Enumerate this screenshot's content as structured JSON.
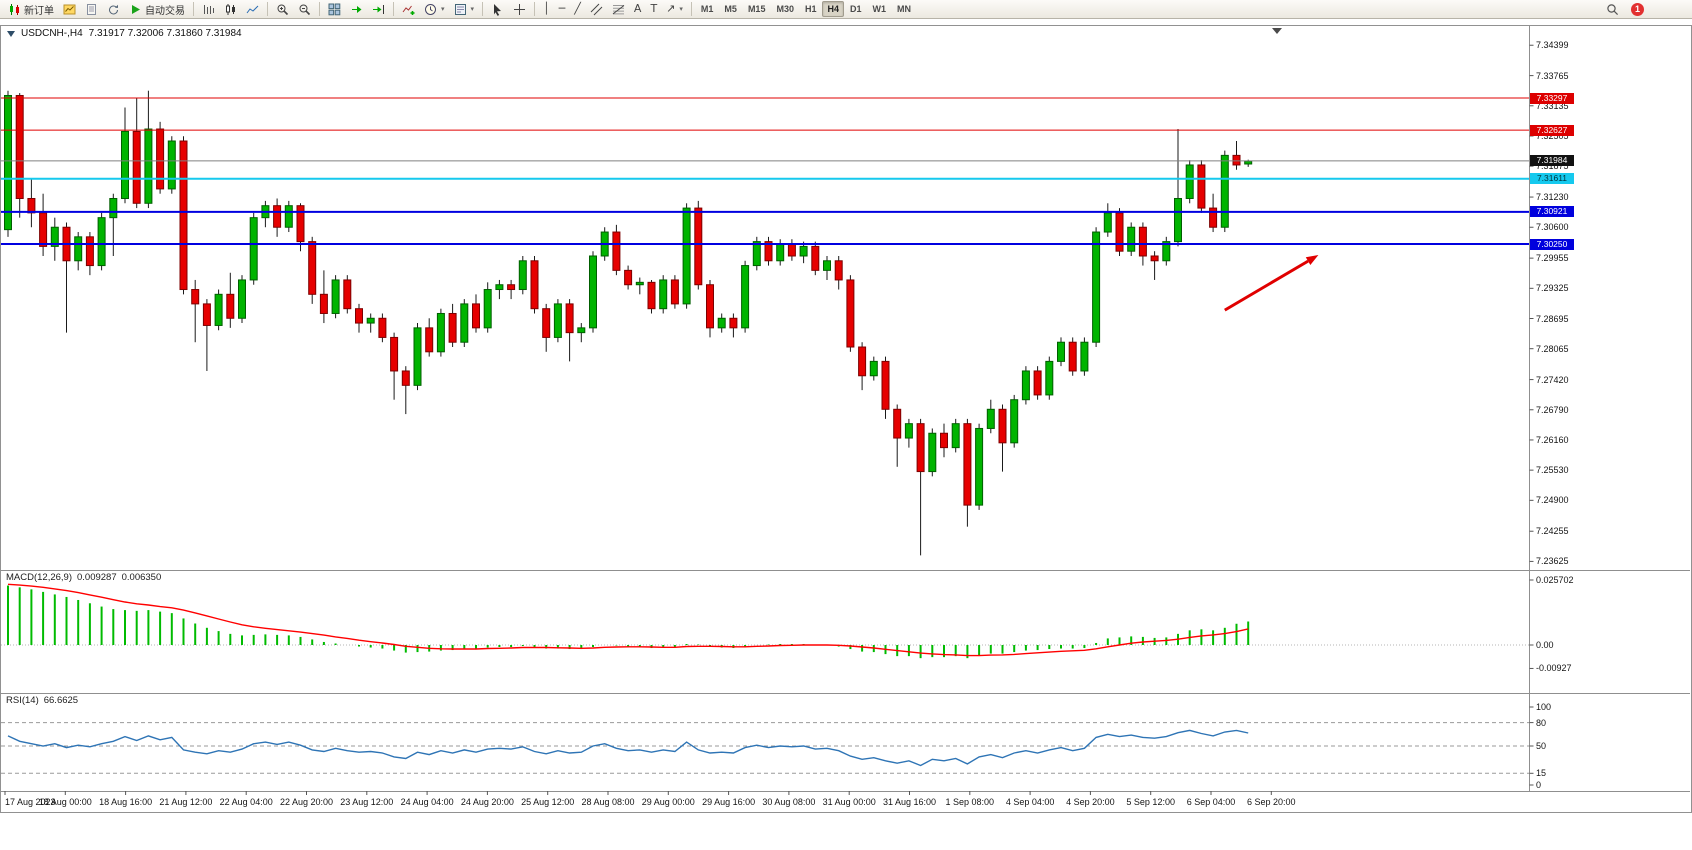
{
  "toolbar": {
    "buttons": [
      {
        "name": "new-order",
        "icon": "candles",
        "label": "新订单"
      },
      {
        "name": "new-chart",
        "icon": "chart-yellow"
      },
      {
        "name": "profiles",
        "icon": "document"
      },
      {
        "name": "refresh",
        "icon": "refresh"
      },
      {
        "name": "auto-trading",
        "icon": "play",
        "label": "自动交易"
      },
      {
        "sep": true
      },
      {
        "name": "bar-chart",
        "icon": "bars"
      },
      {
        "name": "candlestick-chart",
        "icon": "candle"
      },
      {
        "name": "line-chart",
        "icon": "line"
      },
      {
        "sep": true
      },
      {
        "name": "zoom-in",
        "icon": "zoom-in"
      },
      {
        "name": "zoom-out",
        "icon": "zoom-out"
      },
      {
        "sep": true
      },
      {
        "name": "tile-windows",
        "icon": "grid"
      },
      {
        "name": "auto-scroll",
        "icon": "scroll"
      },
      {
        "name": "chart-shift",
        "icon": "shift"
      },
      {
        "sep": true
      },
      {
        "name": "indicators",
        "icon": "indicator"
      },
      {
        "name": "periods",
        "icon": "clock",
        "dropdown": true
      },
      {
        "name": "templates",
        "icon": "template",
        "dropdown": true
      },
      {
        "sep": true
      },
      {
        "name": "cursor",
        "icon": "cursor"
      },
      {
        "name": "crosshair",
        "icon": "crosshair"
      },
      {
        "sep": true
      },
      {
        "name": "vertical-line",
        "glyph": "│"
      },
      {
        "name": "horizontal-line",
        "glyph": "─"
      },
      {
        "name": "trendline",
        "glyph": "╱"
      },
      {
        "name": "equidistant-channel",
        "icon": "channel"
      },
      {
        "name": "fibonacci",
        "icon": "fibonacci"
      },
      {
        "name": "text",
        "glyph": "A"
      },
      {
        "name": "text-label",
        "glyph": "T"
      },
      {
        "name": "arrows",
        "glyph": "↗",
        "dropdown": true
      },
      {
        "sep": true
      }
    ],
    "timeframes": [
      "M1",
      "M5",
      "M15",
      "M30",
      "H1",
      "H4",
      "D1",
      "W1",
      "MN"
    ],
    "active_timeframe": "H4",
    "notification_count": "1"
  },
  "chart": {
    "symbol_period": "USDCNH-,H4",
    "ohlc": "7.31917 7.32006 7.31860 7.31984"
  },
  "price_axis": {
    "ticks": [
      "7.34399",
      "7.33765",
      "7.33135",
      "7.32505",
      "7.31875",
      "7.31230",
      "7.30600",
      "7.29955",
      "7.29325",
      "7.28695",
      "7.28065",
      "7.27420",
      "7.26790",
      "7.26160",
      "7.25530",
      "7.24900",
      "7.24255",
      "7.23625"
    ],
    "labels": [
      {
        "text": "7.33297",
        "bg": "#dd0000",
        "fg": "#ffffff"
      },
      {
        "text": "7.32627",
        "bg": "#dd0000",
        "fg": "#ffffff"
      },
      {
        "text": "7.31984",
        "bg": "#111111",
        "fg": "#ffffff"
      },
      {
        "text": "7.31611",
        "bg": "#15c9ee",
        "fg": "#00333d"
      },
      {
        "text": "7.30921",
        "bg": "#0000dd",
        "fg": "#ffffff"
      },
      {
        "text": "7.30250",
        "bg": "#0000dd",
        "fg": "#ffffff"
      }
    ]
  },
  "macd_panel": {
    "label": "MACD(12,26,9)",
    "value_main": "0.009287",
    "value_signal": "0.006350",
    "axis": [
      "0.025702",
      "0.00",
      "-0.00927"
    ]
  },
  "rsi_panel": {
    "label": "RSI(14)",
    "value": "66.6625",
    "axis": [
      "100",
      "80",
      "50",
      "15",
      "0"
    ]
  },
  "time_axis": {
    "labels": [
      "17 Aug 2023",
      "18 Aug 00:00",
      "18 Aug 16:00",
      "21 Aug 12:00",
      "22 Aug 04:00",
      "22 Aug 20:00",
      "23 Aug 12:00",
      "24 Aug 04:00",
      "24 Aug 20:00",
      "25 Aug 12:00",
      "28 Aug 08:00",
      "29 Aug 00:00",
      "29 Aug 16:00",
      "30 Aug 08:00",
      "31 Aug 00:00",
      "31 Aug 16:00",
      "1 Sep 08:00",
      "4 Sep 04:00",
      "4 Sep 20:00",
      "5 Sep 12:00",
      "6 Sep 04:00",
      "6 Sep 20:00"
    ]
  },
  "chart_data": {
    "type": "candlestick",
    "symbol": "USDCNH-",
    "timeframe": "H4",
    "title": "USDCNH-,H4 7.31917 7.32006 7.31860 7.31984",
    "ohlc_current": {
      "open": 7.31917,
      "high": 7.32006,
      "low": 7.3186,
      "close": 7.31984
    },
    "ylim": [
      7.2355,
      7.3455
    ],
    "open": [
      7.3055,
      7.3335,
      7.312,
      7.309,
      7.302,
      7.306,
      7.299,
      7.304,
      7.298,
      7.308,
      7.312,
      7.326,
      7.311,
      7.3265,
      7.314,
      7.324,
      7.293,
      7.29,
      7.2855,
      7.292,
      7.287,
      7.295,
      7.308,
      7.3105,
      7.306,
      7.3105,
      7.303,
      7.292,
      7.288,
      7.295,
      7.289,
      7.286,
      7.287,
      7.283,
      7.276,
      7.273,
      7.285,
      7.28,
      7.288,
      7.282,
      7.29,
      7.285,
      7.293,
      7.294,
      7.293,
      7.299,
      7.289,
      7.283,
      7.29,
      7.284,
      7.285,
      7.3,
      7.305,
      7.297,
      7.294,
      7.2945,
      7.289,
      7.295,
      7.29,
      7.31,
      7.294,
      7.285,
      7.287,
      7.285,
      7.298,
      7.303,
      7.299,
      7.3025,
      7.3,
      7.302,
      7.297,
      7.299,
      7.295,
      7.281,
      7.275,
      7.278,
      7.268,
      7.262,
      7.265,
      7.255,
      7.263,
      7.26,
      7.265,
      7.248,
      7.264,
      7.268,
      7.261,
      7.27,
      7.276,
      7.271,
      7.278,
      7.282,
      7.276,
      7.282,
      7.305,
      7.309,
      7.301,
      7.306,
      7.3,
      7.299,
      7.303,
      7.312,
      7.319,
      7.31,
      7.306,
      7.321,
      7.3192
    ],
    "high": [
      7.3345,
      7.334,
      7.316,
      7.313,
      7.308,
      7.307,
      7.305,
      7.305,
      7.309,
      7.313,
      7.331,
      7.333,
      7.3345,
      7.328,
      7.325,
      7.325,
      7.295,
      7.291,
      7.293,
      7.2965,
      7.296,
      7.309,
      7.3115,
      7.312,
      7.3115,
      7.311,
      7.304,
      7.297,
      7.296,
      7.296,
      7.29,
      7.288,
      7.288,
      7.284,
      7.277,
      7.286,
      7.287,
      7.289,
      7.29,
      7.291,
      7.292,
      7.2945,
      7.295,
      7.295,
      7.3,
      7.3,
      7.29,
      7.291,
      7.291,
      7.286,
      7.301,
      7.306,
      7.3065,
      7.298,
      7.2955,
      7.295,
      7.296,
      7.296,
      7.311,
      7.3115,
      7.295,
      7.288,
      7.288,
      7.299,
      7.304,
      7.304,
      7.3035,
      7.3035,
      7.303,
      7.303,
      7.3,
      7.3,
      7.296,
      7.282,
      7.279,
      7.279,
      7.269,
      7.266,
      7.266,
      7.264,
      7.265,
      7.266,
      7.266,
      7.265,
      7.27,
      7.269,
      7.271,
      7.277,
      7.277,
      7.279,
      7.283,
      7.283,
      7.283,
      7.306,
      7.311,
      7.31,
      7.307,
      7.307,
      7.301,
      7.304,
      7.3265,
      7.32,
      7.32,
      7.313,
      7.322,
      7.324,
      7.3201
    ],
    "low": [
      7.304,
      7.308,
      7.306,
      7.3,
      7.299,
      7.284,
      7.297,
      7.296,
      7.297,
      7.3,
      7.311,
      7.31,
      7.31,
      7.313,
      7.313,
      7.292,
      7.282,
      7.276,
      7.2845,
      7.285,
      7.286,
      7.294,
      7.306,
      7.304,
      7.305,
      7.301,
      7.29,
      7.286,
      7.287,
      7.288,
      7.284,
      7.284,
      7.282,
      7.27,
      7.267,
      7.272,
      7.279,
      7.279,
      7.281,
      7.281,
      7.284,
      7.284,
      7.291,
      7.291,
      7.292,
      7.288,
      7.28,
      7.282,
      7.278,
      7.282,
      7.284,
      7.299,
      7.296,
      7.293,
      7.292,
      7.288,
      7.288,
      7.289,
      7.289,
      7.293,
      7.283,
      7.284,
      7.283,
      7.284,
      7.297,
      7.298,
      7.298,
      7.299,
      7.2985,
      7.296,
      7.295,
      7.293,
      7.28,
      7.272,
      7.274,
      7.266,
      7.256,
      7.26,
      7.2375,
      7.254,
      7.258,
      7.259,
      7.2435,
      7.247,
      7.263,
      7.255,
      7.26,
      7.269,
      7.27,
      7.27,
      7.277,
      7.275,
      7.275,
      7.281,
      7.304,
      7.3,
      7.3,
      7.298,
      7.295,
      7.298,
      7.302,
      7.311,
      7.309,
      7.305,
      7.305,
      7.318,
      7.3186
    ],
    "close": [
      7.3335,
      7.312,
      7.309,
      7.302,
      7.306,
      7.299,
      7.304,
      7.298,
      7.308,
      7.312,
      7.326,
      7.311,
      7.3265,
      7.314,
      7.324,
      7.293,
      7.29,
      7.2855,
      7.292,
      7.287,
      7.295,
      7.308,
      7.3105,
      7.306,
      7.3105,
      7.303,
      7.292,
      7.288,
      7.295,
      7.289,
      7.286,
      7.287,
      7.283,
      7.276,
      7.273,
      7.285,
      7.28,
      7.288,
      7.282,
      7.29,
      7.285,
      7.293,
      7.294,
      7.293,
      7.299,
      7.289,
      7.283,
      7.29,
      7.284,
      7.285,
      7.3,
      7.305,
      7.297,
      7.294,
      7.2945,
      7.289,
      7.295,
      7.29,
      7.31,
      7.294,
      7.285,
      7.287,
      7.285,
      7.298,
      7.303,
      7.299,
      7.3025,
      7.3,
      7.302,
      7.297,
      7.299,
      7.295,
      7.281,
      7.275,
      7.278,
      7.268,
      7.262,
      7.265,
      7.255,
      7.263,
      7.26,
      7.265,
      7.248,
      7.264,
      7.268,
      7.261,
      7.27,
      7.276,
      7.271,
      7.278,
      7.282,
      7.276,
      7.282,
      7.305,
      7.309,
      7.301,
      7.306,
      7.3,
      7.299,
      7.303,
      7.312,
      7.319,
      7.31,
      7.306,
      7.321,
      7.319,
      7.3198
    ],
    "levels": [
      {
        "price": 7.33297,
        "color": "#e00000",
        "width": 1
      },
      {
        "price": 7.32627,
        "color": "#e00000",
        "width": 1
      },
      {
        "price": 7.31984,
        "color": "#808080",
        "width": 1
      },
      {
        "price": 7.31611,
        "color": "#15c9ee",
        "width": 2
      },
      {
        "price": 7.30921,
        "color": "#0000e0",
        "width": 2
      },
      {
        "price": 7.3025,
        "color": "#0000e0",
        "width": 2
      }
    ],
    "macd": {
      "ylim": [
        -0.00927,
        0.025702
      ],
      "histogram": [
        0.0235,
        0.0228,
        0.022,
        0.021,
        0.02,
        0.019,
        0.0178,
        0.0165,
        0.0152,
        0.0142,
        0.0138,
        0.0135,
        0.0138,
        0.0132,
        0.0126,
        0.0105,
        0.0085,
        0.0068,
        0.0055,
        0.0044,
        0.0038,
        0.004,
        0.0042,
        0.004,
        0.0038,
        0.0032,
        0.0022,
        0.0012,
        0.0006,
        0.0,
        -0.0006,
        -0.001,
        -0.0014,
        -0.0022,
        -0.003,
        -0.0028,
        -0.0026,
        -0.0022,
        -0.002,
        -0.0016,
        -0.0014,
        -0.001,
        -0.0008,
        -0.0008,
        -0.0004,
        -0.0008,
        -0.0014,
        -0.0014,
        -0.0016,
        -0.0016,
        -0.0008,
        0.0,
        -0.0002,
        -0.0006,
        -0.0008,
        -0.0012,
        -0.001,
        -0.001,
        0.0004,
        0.0002,
        -0.0006,
        -0.001,
        -0.0012,
        -0.0006,
        0.0,
        0.0002,
        0.0004,
        0.0004,
        0.0004,
        0.0,
        -0.0002,
        -0.0006,
        -0.0016,
        -0.0026,
        -0.0028,
        -0.0036,
        -0.0044,
        -0.0044,
        -0.0052,
        -0.0048,
        -0.0048,
        -0.0044,
        -0.0052,
        -0.0042,
        -0.0034,
        -0.0034,
        -0.0028,
        -0.0022,
        -0.002,
        -0.0016,
        -0.0014,
        -0.0014,
        -0.0012,
        0.0008,
        0.0026,
        0.003,
        0.0034,
        0.0032,
        0.0028,
        0.003,
        0.0044,
        0.0058,
        0.0062,
        0.0058,
        0.0068,
        0.0084,
        0.009287
      ],
      "signal": [
        0.024,
        0.0237,
        0.0233,
        0.0228,
        0.0222,
        0.0215,
        0.0207,
        0.0198,
        0.0189,
        0.0179,
        0.017,
        0.0163,
        0.0158,
        0.0152,
        0.0147,
        0.0138,
        0.0127,
        0.0115,
        0.0103,
        0.0091,
        0.008,
        0.0072,
        0.0066,
        0.0061,
        0.0056,
        0.0051,
        0.0045,
        0.0039,
        0.0032,
        0.0026,
        0.0019,
        0.0013,
        0.0008,
        0.0002,
        -0.0005,
        -0.0009,
        -0.0013,
        -0.0015,
        -0.0016,
        -0.0016,
        -0.0016,
        -0.0014,
        -0.0013,
        -0.0012,
        -0.001,
        -0.001,
        -0.001,
        -0.0011,
        -0.0012,
        -0.0013,
        -0.0012,
        -0.0009,
        -0.0008,
        -0.0007,
        -0.0007,
        -0.0008,
        -0.0009,
        -0.0009,
        -0.0006,
        -0.0005,
        -0.0005,
        -0.0006,
        -0.0007,
        -0.0007,
        -0.0005,
        -0.0004,
        -0.0002,
        -0.0001,
        0.0,
        0.0,
        0.0,
        -0.0001,
        -0.0004,
        -0.0008,
        -0.0012,
        -0.0017,
        -0.0022,
        -0.0027,
        -0.0032,
        -0.0035,
        -0.0038,
        -0.0039,
        -0.0042,
        -0.0042,
        -0.004,
        -0.0039,
        -0.0037,
        -0.0034,
        -0.0031,
        -0.0028,
        -0.0025,
        -0.0023,
        -0.0021,
        -0.0015,
        -0.0007,
        0.0,
        0.0007,
        0.0012,
        0.0015,
        0.0018,
        0.0023,
        0.003,
        0.0036,
        0.004,
        0.0045,
        0.0053,
        0.00635
      ]
    },
    "rsi": {
      "ylim": [
        0,
        100
      ],
      "levels": [
        80,
        50,
        15
      ],
      "current": 66.6625,
      "values": [
        63,
        56,
        53,
        50,
        53,
        48,
        51,
        49,
        53,
        56,
        62,
        57,
        63,
        58,
        61,
        45,
        42,
        40,
        44,
        42,
        46,
        53,
        55,
        52,
        55,
        51,
        45,
        43,
        47,
        44,
        42,
        43,
        41,
        36,
        34,
        42,
        39,
        44,
        41,
        45,
        42,
        46,
        47,
        46,
        49,
        43,
        40,
        44,
        41,
        42,
        50,
        53,
        47,
        44,
        45,
        42,
        45,
        43,
        55,
        45,
        41,
        42,
        41,
        48,
        51,
        48,
        50,
        49,
        50,
        46,
        47,
        44,
        37,
        33,
        35,
        31,
        28,
        31,
        25,
        33,
        31,
        34,
        27,
        36,
        39,
        35,
        41,
        44,
        41,
        45,
        48,
        44,
        47,
        61,
        65,
        62,
        64,
        61,
        60,
        62,
        67,
        70,
        66,
        63,
        68,
        70,
        66.6625
      ]
    },
    "colors": {
      "up": "#00b400",
      "down": "#e60000",
      "up_border": "#005f00",
      "down_border": "#7d0000",
      "wick": "#1a1a1a",
      "macd_hist": "#00bb00",
      "macd_signal": "#ff0000",
      "rsi_line": "#2e74b5",
      "arrow": "#e00000"
    },
    "annotations": {
      "arrow": {
        "x1_index": 104,
        "y1_price": 7.2887,
        "x2_index": 112,
        "y2_price": 7.3002
      }
    }
  }
}
